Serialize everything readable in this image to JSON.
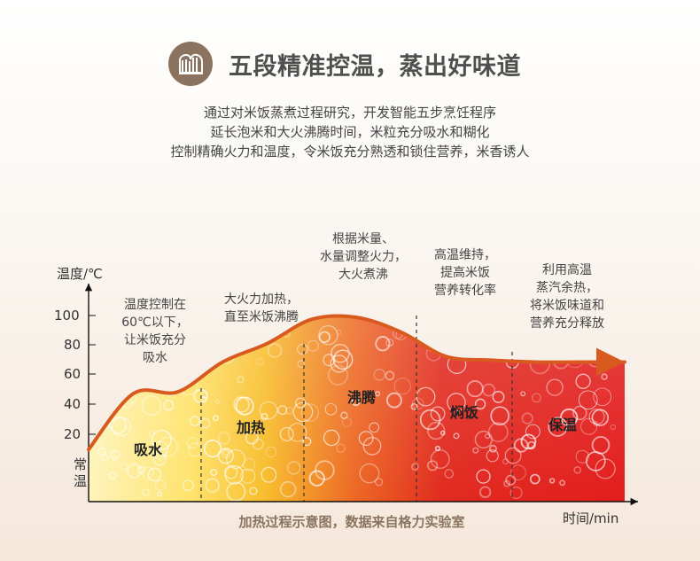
{
  "header": {
    "title": "五段精准控温，蒸出好味道",
    "logo_icon": "steam-bars-logo-icon"
  },
  "intro": {
    "lines": [
      "通过对米饭蒸煮过程研究，开发智能五步烹饪程序",
      "延长泡米和大火沸腾时间，米粒充分吸水和糊化",
      "控制精确火力和温度，令米饭充分熟透和锁住营养，米香诱人"
    ]
  },
  "chart_data": {
    "type": "area",
    "title": "",
    "xlabel": "时间/min",
    "ylabel": "温度/℃",
    "y_ticks": [
      "100",
      "80",
      "60",
      "40",
      "20"
    ],
    "y_tick_values": [
      100,
      80,
      60,
      40,
      20
    ],
    "bottom_label": "常温",
    "caption": "加热过程示意图，数据来自格力实验室",
    "ylim": [
      0,
      110
    ],
    "grid": false,
    "phases": [
      {
        "name": "吸水",
        "description_lines": [
          "温度控制在",
          "60℃以下，",
          "让米饭充分",
          "吸水"
        ]
      },
      {
        "name": "加热",
        "description_lines": [
          "大火力加热，",
          "直至米饭沸腾"
        ]
      },
      {
        "name": "沸腾",
        "description_lines": [
          "根据米量、",
          "水量调整火力，",
          "大火煮沸"
        ]
      },
      {
        "name": "焖饭",
        "description_lines": [
          "高温维持，",
          "提高米饭",
          "营养转化率"
        ]
      },
      {
        "name": "保温",
        "description_lines": [
          "利用高温",
          "蒸汽余热，",
          "将米饭味道和",
          "营养充分释放"
        ]
      }
    ],
    "curve": {
      "x": [
        0,
        1,
        2,
        3,
        4,
        5,
        6,
        7,
        8,
        9,
        10,
        11,
        12
      ],
      "y": [
        28,
        58,
        59,
        75,
        85,
        98,
        99,
        91,
        78,
        76,
        75,
        75,
        75
      ]
    }
  },
  "colors": {
    "header_badge": "#8b735f",
    "absorb": "#fff1a8",
    "heat": "#f7b42d",
    "boil": "#e93a22",
    "simmer": "#d91d1b",
    "keep_warm": "#e21d1d",
    "curve": "#d85a1f",
    "caption": "#8a7460"
  }
}
